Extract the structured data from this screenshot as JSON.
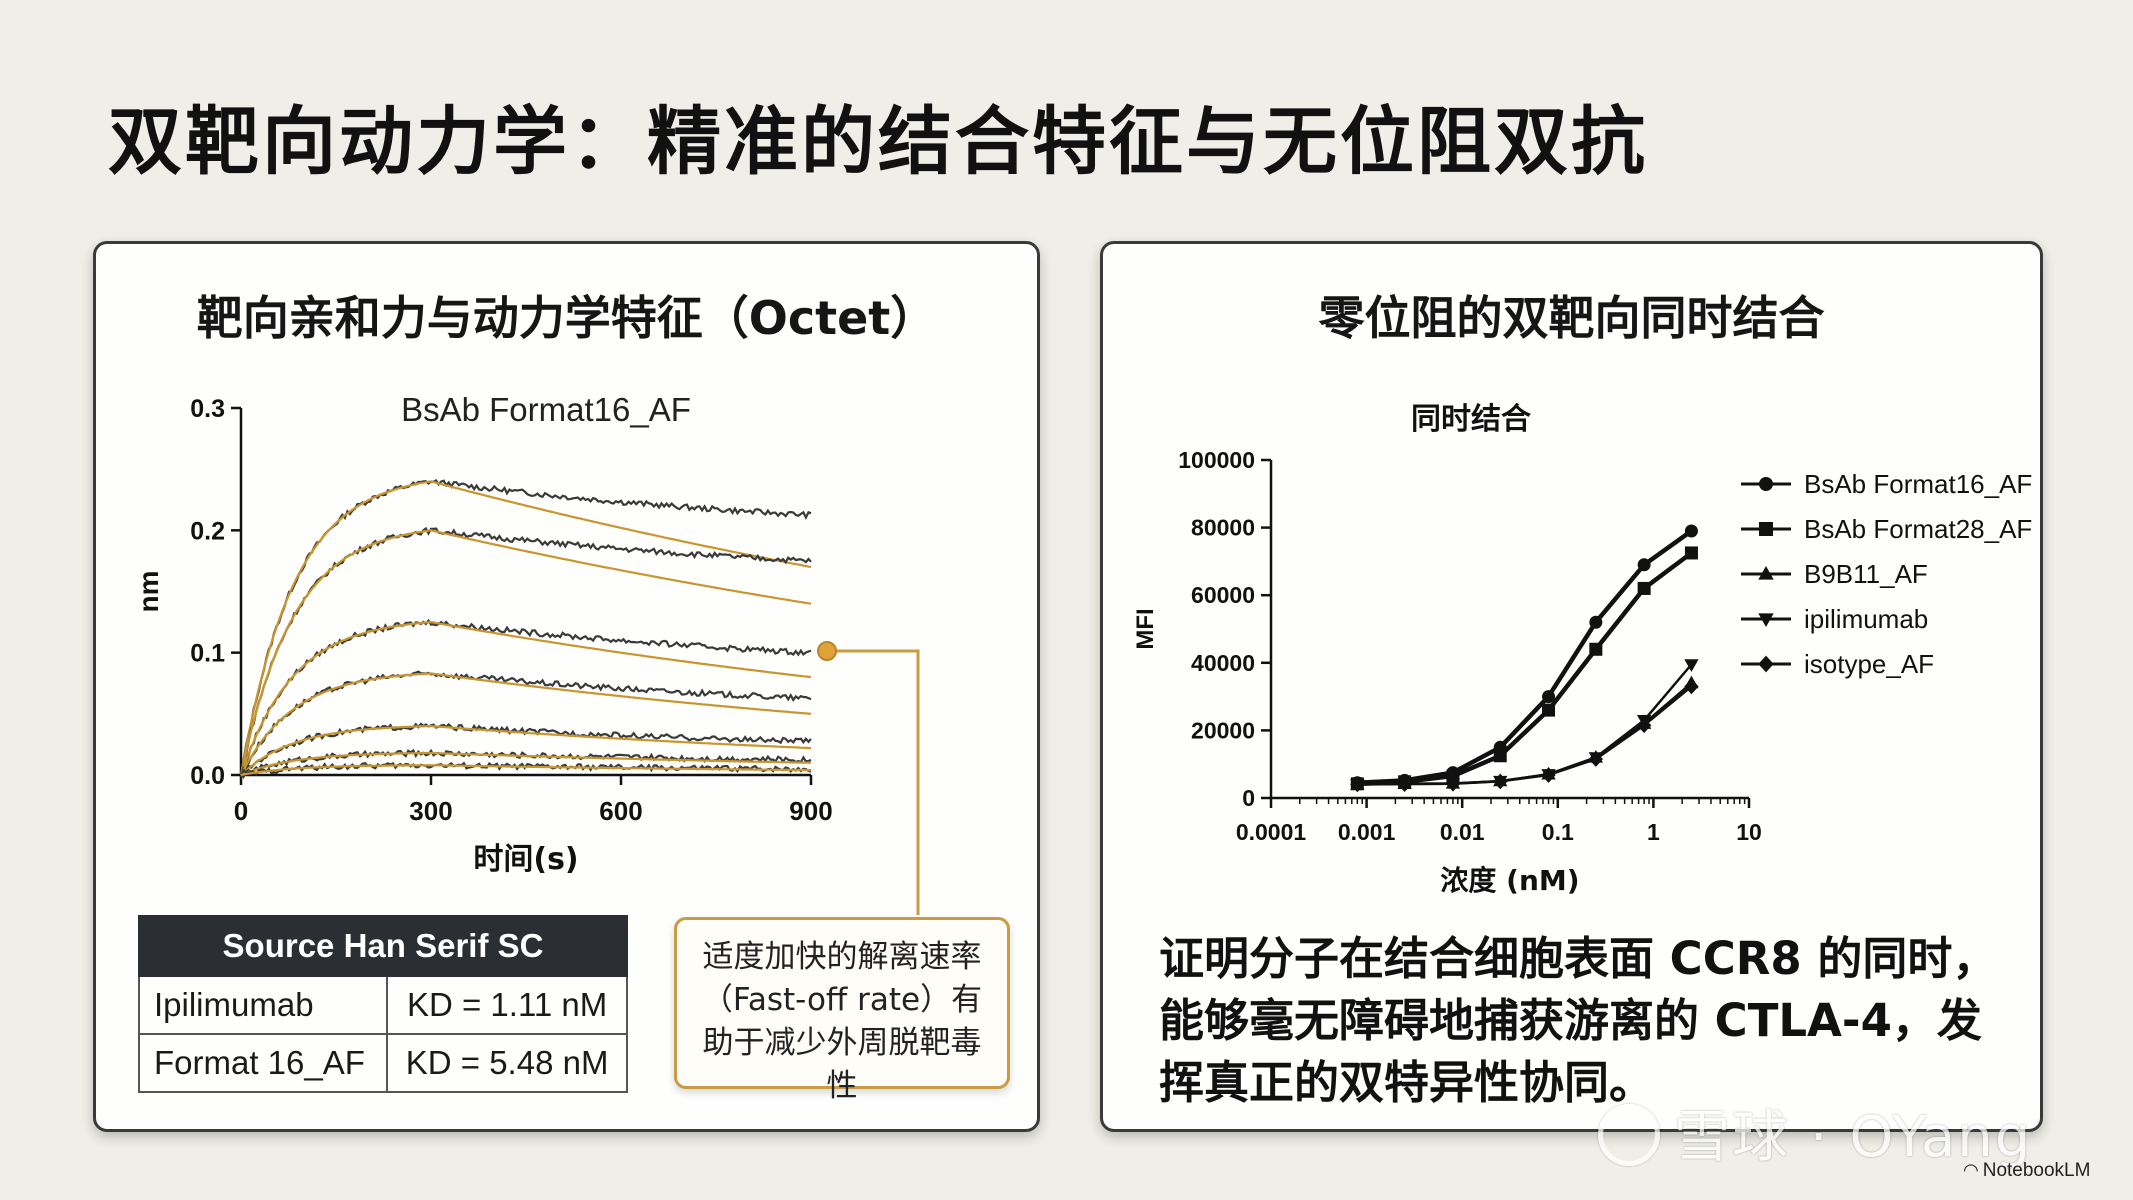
{
  "slide_title": "双靶向动力学：精准的结合特征与无位阻双抗",
  "left_panel": {
    "title": "靶向亲和力与动力学特征（Octet）",
    "table": {
      "header": "Source Han Serif SC",
      "rows": [
        {
          "name": "Ipilimumab",
          "kd": "KD = 1.11 nM"
        },
        {
          "name": "Format 16_AF",
          "kd": "KD = 5.48 nM"
        }
      ]
    },
    "callout": "适度加快的解离速率（Fast-off rate）有助于减少外周脱靶毒性"
  },
  "right_panel": {
    "title": "零位阻的双靶向同时结合",
    "conclusion": "证明分子在结合细胞表面 CCR8 的同时，能够毫无障碍地捕获游离的 CTLA-4，发挥真正的双特异性协同。"
  },
  "chart_data": [
    {
      "type": "line",
      "title": "BsAb Format16_AF",
      "xlabel": "时间(s)",
      "ylabel": "nm",
      "xlim": [
        0,
        900
      ],
      "ylim": [
        0,
        0.3
      ],
      "x_ticks": [
        0,
        300,
        600,
        900
      ],
      "y_ticks": [
        0.0,
        0.1,
        0.2,
        0.3
      ],
      "y_tick_labels": [
        "0.0",
        "0.1",
        "0.2",
        "0.3"
      ],
      "x_tick_labels": [
        "0",
        "300",
        "600",
        "900"
      ],
      "association_end": 300,
      "colors": {
        "raw": "#3a3a3a",
        "fit": "#c8962e"
      },
      "series": [
        {
          "peak": 0.24,
          "end": 0.17
        },
        {
          "peak": 0.2,
          "end": 0.14
        },
        {
          "peak": 0.125,
          "end": 0.08
        },
        {
          "peak": 0.083,
          "end": 0.05
        },
        {
          "peak": 0.04,
          "end": 0.022
        },
        {
          "peak": 0.018,
          "end": 0.01
        },
        {
          "peak": 0.008,
          "end": 0.004
        }
      ]
    },
    {
      "type": "line",
      "title": "同时结合",
      "xlabel": "浓度 (nM)",
      "ylabel": "MFI",
      "x_scale": "log",
      "xlim": [
        0.0001,
        10
      ],
      "ylim": [
        0,
        100000
      ],
      "x_ticks": [
        0.0001,
        0.001,
        0.01,
        0.1,
        1,
        10
      ],
      "x_tick_labels": [
        "0.0001",
        "0.001",
        "0.01",
        "0.1",
        "1",
        "10"
      ],
      "y_ticks": [
        0,
        20000,
        40000,
        60000,
        80000,
        100000
      ],
      "y_tick_labels": [
        "0",
        "20000",
        "40000",
        "60000",
        "80000",
        "100000"
      ],
      "legend_position": "right",
      "x": [
        0.0008,
        0.0025,
        0.008,
        0.025,
        0.08,
        0.25,
        0.8,
        2.5
      ],
      "series": [
        {
          "name": "BsAb Format16_AF",
          "marker": "circle",
          "values": [
            4500,
            5200,
            7500,
            15000,
            30000,
            52000,
            69000,
            79000
          ]
        },
        {
          "name": "BsAb Format28_AF",
          "marker": "square",
          "values": [
            4200,
            4800,
            6500,
            12500,
            26000,
            44000,
            62000,
            72500
          ]
        },
        {
          "name": "B9B11_AF",
          "marker": "triangle-up",
          "values": [
            4000,
            4200,
            4300,
            5000,
            7000,
            12000,
            22000,
            34000
          ]
        },
        {
          "name": "ipilimumab",
          "marker": "triangle-down",
          "values": [
            4000,
            4200,
            4300,
            5000,
            7000,
            12000,
            23000,
            39500
          ]
        },
        {
          "name": "isotype_AF",
          "marker": "diamond",
          "values": [
            4000,
            4100,
            4200,
            4900,
            6800,
            11500,
            21500,
            33000
          ]
        }
      ]
    }
  ],
  "watermark": "雪球 · OYang",
  "credit": "NotebookLM"
}
